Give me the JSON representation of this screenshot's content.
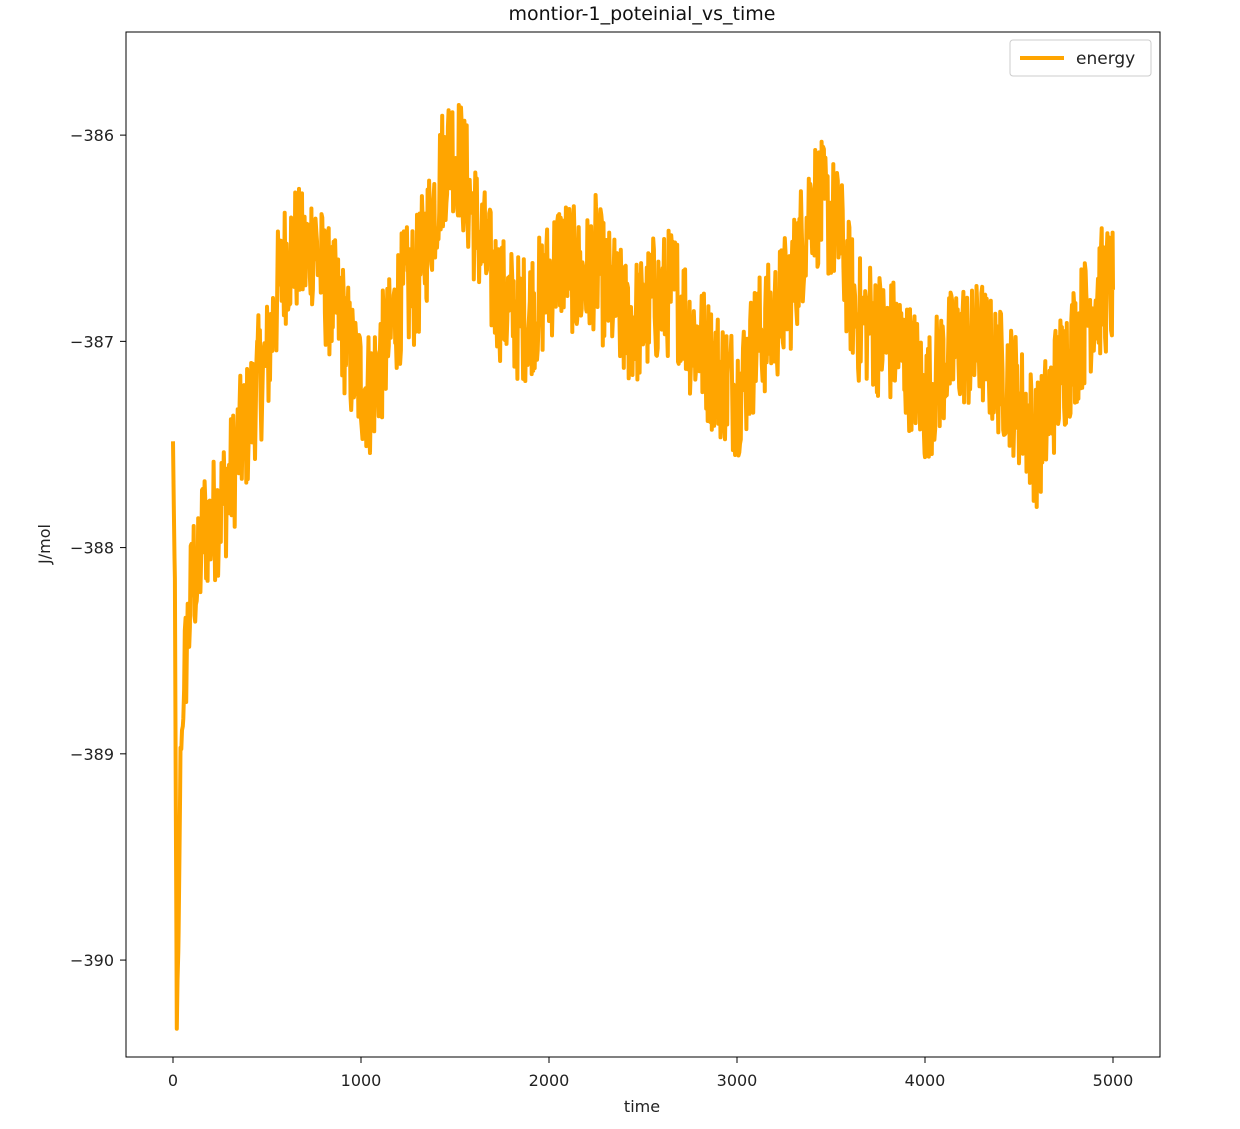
{
  "chart_data": {
    "type": "line",
    "title": "montior-1_poteinial_vs_time",
    "xlabel": "time",
    "ylabel": "J/mol",
    "xlim": [
      -250,
      5250
    ],
    "ylim": [
      -390.47,
      -385.5
    ],
    "xticks": [
      0,
      1000,
      2000,
      3000,
      4000,
      5000
    ],
    "yticks": [
      -390,
      -389,
      -388,
      -387,
      -386
    ],
    "grid": false,
    "legend_position": "top-right",
    "series": [
      {
        "name": "energy",
        "color": "#ffa500",
        "anchors": [
          [
            0,
            -387.5
          ],
          [
            10,
            -388.2
          ],
          [
            20,
            -390.3
          ],
          [
            30,
            -389.9
          ],
          [
            40,
            -389.0
          ],
          [
            55,
            -388.8
          ],
          [
            70,
            -388.5
          ],
          [
            90,
            -388.3
          ],
          [
            110,
            -388.1
          ],
          [
            130,
            -388.2
          ],
          [
            160,
            -387.9
          ],
          [
            200,
            -387.9
          ],
          [
            250,
            -387.8
          ],
          [
            300,
            -387.7
          ],
          [
            350,
            -387.5
          ],
          [
            400,
            -387.4
          ],
          [
            450,
            -387.2
          ],
          [
            500,
            -387.1
          ],
          [
            550,
            -386.8
          ],
          [
            600,
            -386.6
          ],
          [
            650,
            -386.55
          ],
          [
            700,
            -386.6
          ],
          [
            750,
            -386.5
          ],
          [
            800,
            -386.7
          ],
          [
            850,
            -386.8
          ],
          [
            900,
            -386.9
          ],
          [
            950,
            -387.1
          ],
          [
            1000,
            -387.2
          ],
          [
            1050,
            -387.25
          ],
          [
            1100,
            -387.1
          ],
          [
            1150,
            -387.0
          ],
          [
            1200,
            -386.8
          ],
          [
            1250,
            -386.75
          ],
          [
            1300,
            -386.7
          ],
          [
            1350,
            -386.5
          ],
          [
            1400,
            -386.3
          ],
          [
            1450,
            -386.1
          ],
          [
            1500,
            -386.05
          ],
          [
            1550,
            -386.2
          ],
          [
            1600,
            -386.4
          ],
          [
            1650,
            -386.55
          ],
          [
            1700,
            -386.7
          ],
          [
            1750,
            -386.8
          ],
          [
            1800,
            -386.85
          ],
          [
            1850,
            -386.9
          ],
          [
            1900,
            -386.85
          ],
          [
            1950,
            -386.8
          ],
          [
            2000,
            -386.7
          ],
          [
            2050,
            -386.6
          ],
          [
            2100,
            -386.6
          ],
          [
            2150,
            -386.7
          ],
          [
            2200,
            -386.7
          ],
          [
            2250,
            -386.6
          ],
          [
            2300,
            -386.75
          ],
          [
            2350,
            -386.8
          ],
          [
            2400,
            -386.9
          ],
          [
            2450,
            -386.9
          ],
          [
            2500,
            -386.9
          ],
          [
            2550,
            -386.8
          ],
          [
            2600,
            -386.8
          ],
          [
            2650,
            -386.75
          ],
          [
            2700,
            -386.8
          ],
          [
            2750,
            -386.95
          ],
          [
            2800,
            -387.0
          ],
          [
            2850,
            -387.1
          ],
          [
            2900,
            -387.15
          ],
          [
            2950,
            -387.2
          ],
          [
            3000,
            -387.25
          ],
          [
            3050,
            -387.15
          ],
          [
            3100,
            -387.0
          ],
          [
            3150,
            -386.95
          ],
          [
            3200,
            -386.9
          ],
          [
            3250,
            -386.8
          ],
          [
            3300,
            -386.7
          ],
          [
            3350,
            -386.5
          ],
          [
            3400,
            -386.3
          ],
          [
            3450,
            -386.35
          ],
          [
            3500,
            -386.4
          ],
          [
            3550,
            -386.5
          ],
          [
            3600,
            -386.75
          ],
          [
            3650,
            -386.9
          ],
          [
            3700,
            -386.9
          ],
          [
            3750,
            -386.95
          ],
          [
            3800,
            -387.0
          ],
          [
            3850,
            -387.0
          ],
          [
            3900,
            -387.1
          ],
          [
            3950,
            -387.15
          ],
          [
            4000,
            -387.3
          ],
          [
            4050,
            -387.2
          ],
          [
            4100,
            -387.1
          ],
          [
            4150,
            -387.05
          ],
          [
            4200,
            -387.0
          ],
          [
            4250,
            -387.05
          ],
          [
            4300,
            -387.0
          ],
          [
            4350,
            -387.1
          ],
          [
            4400,
            -387.15
          ],
          [
            4450,
            -387.2
          ],
          [
            4500,
            -387.3
          ],
          [
            4550,
            -387.4
          ],
          [
            4600,
            -387.5
          ],
          [
            4650,
            -387.35
          ],
          [
            4700,
            -387.2
          ],
          [
            4750,
            -387.1
          ],
          [
            4800,
            -387.0
          ],
          [
            4850,
            -386.9
          ],
          [
            4900,
            -386.8
          ],
          [
            4950,
            -386.75
          ],
          [
            5000,
            -386.75
          ]
        ]
      }
    ]
  }
}
